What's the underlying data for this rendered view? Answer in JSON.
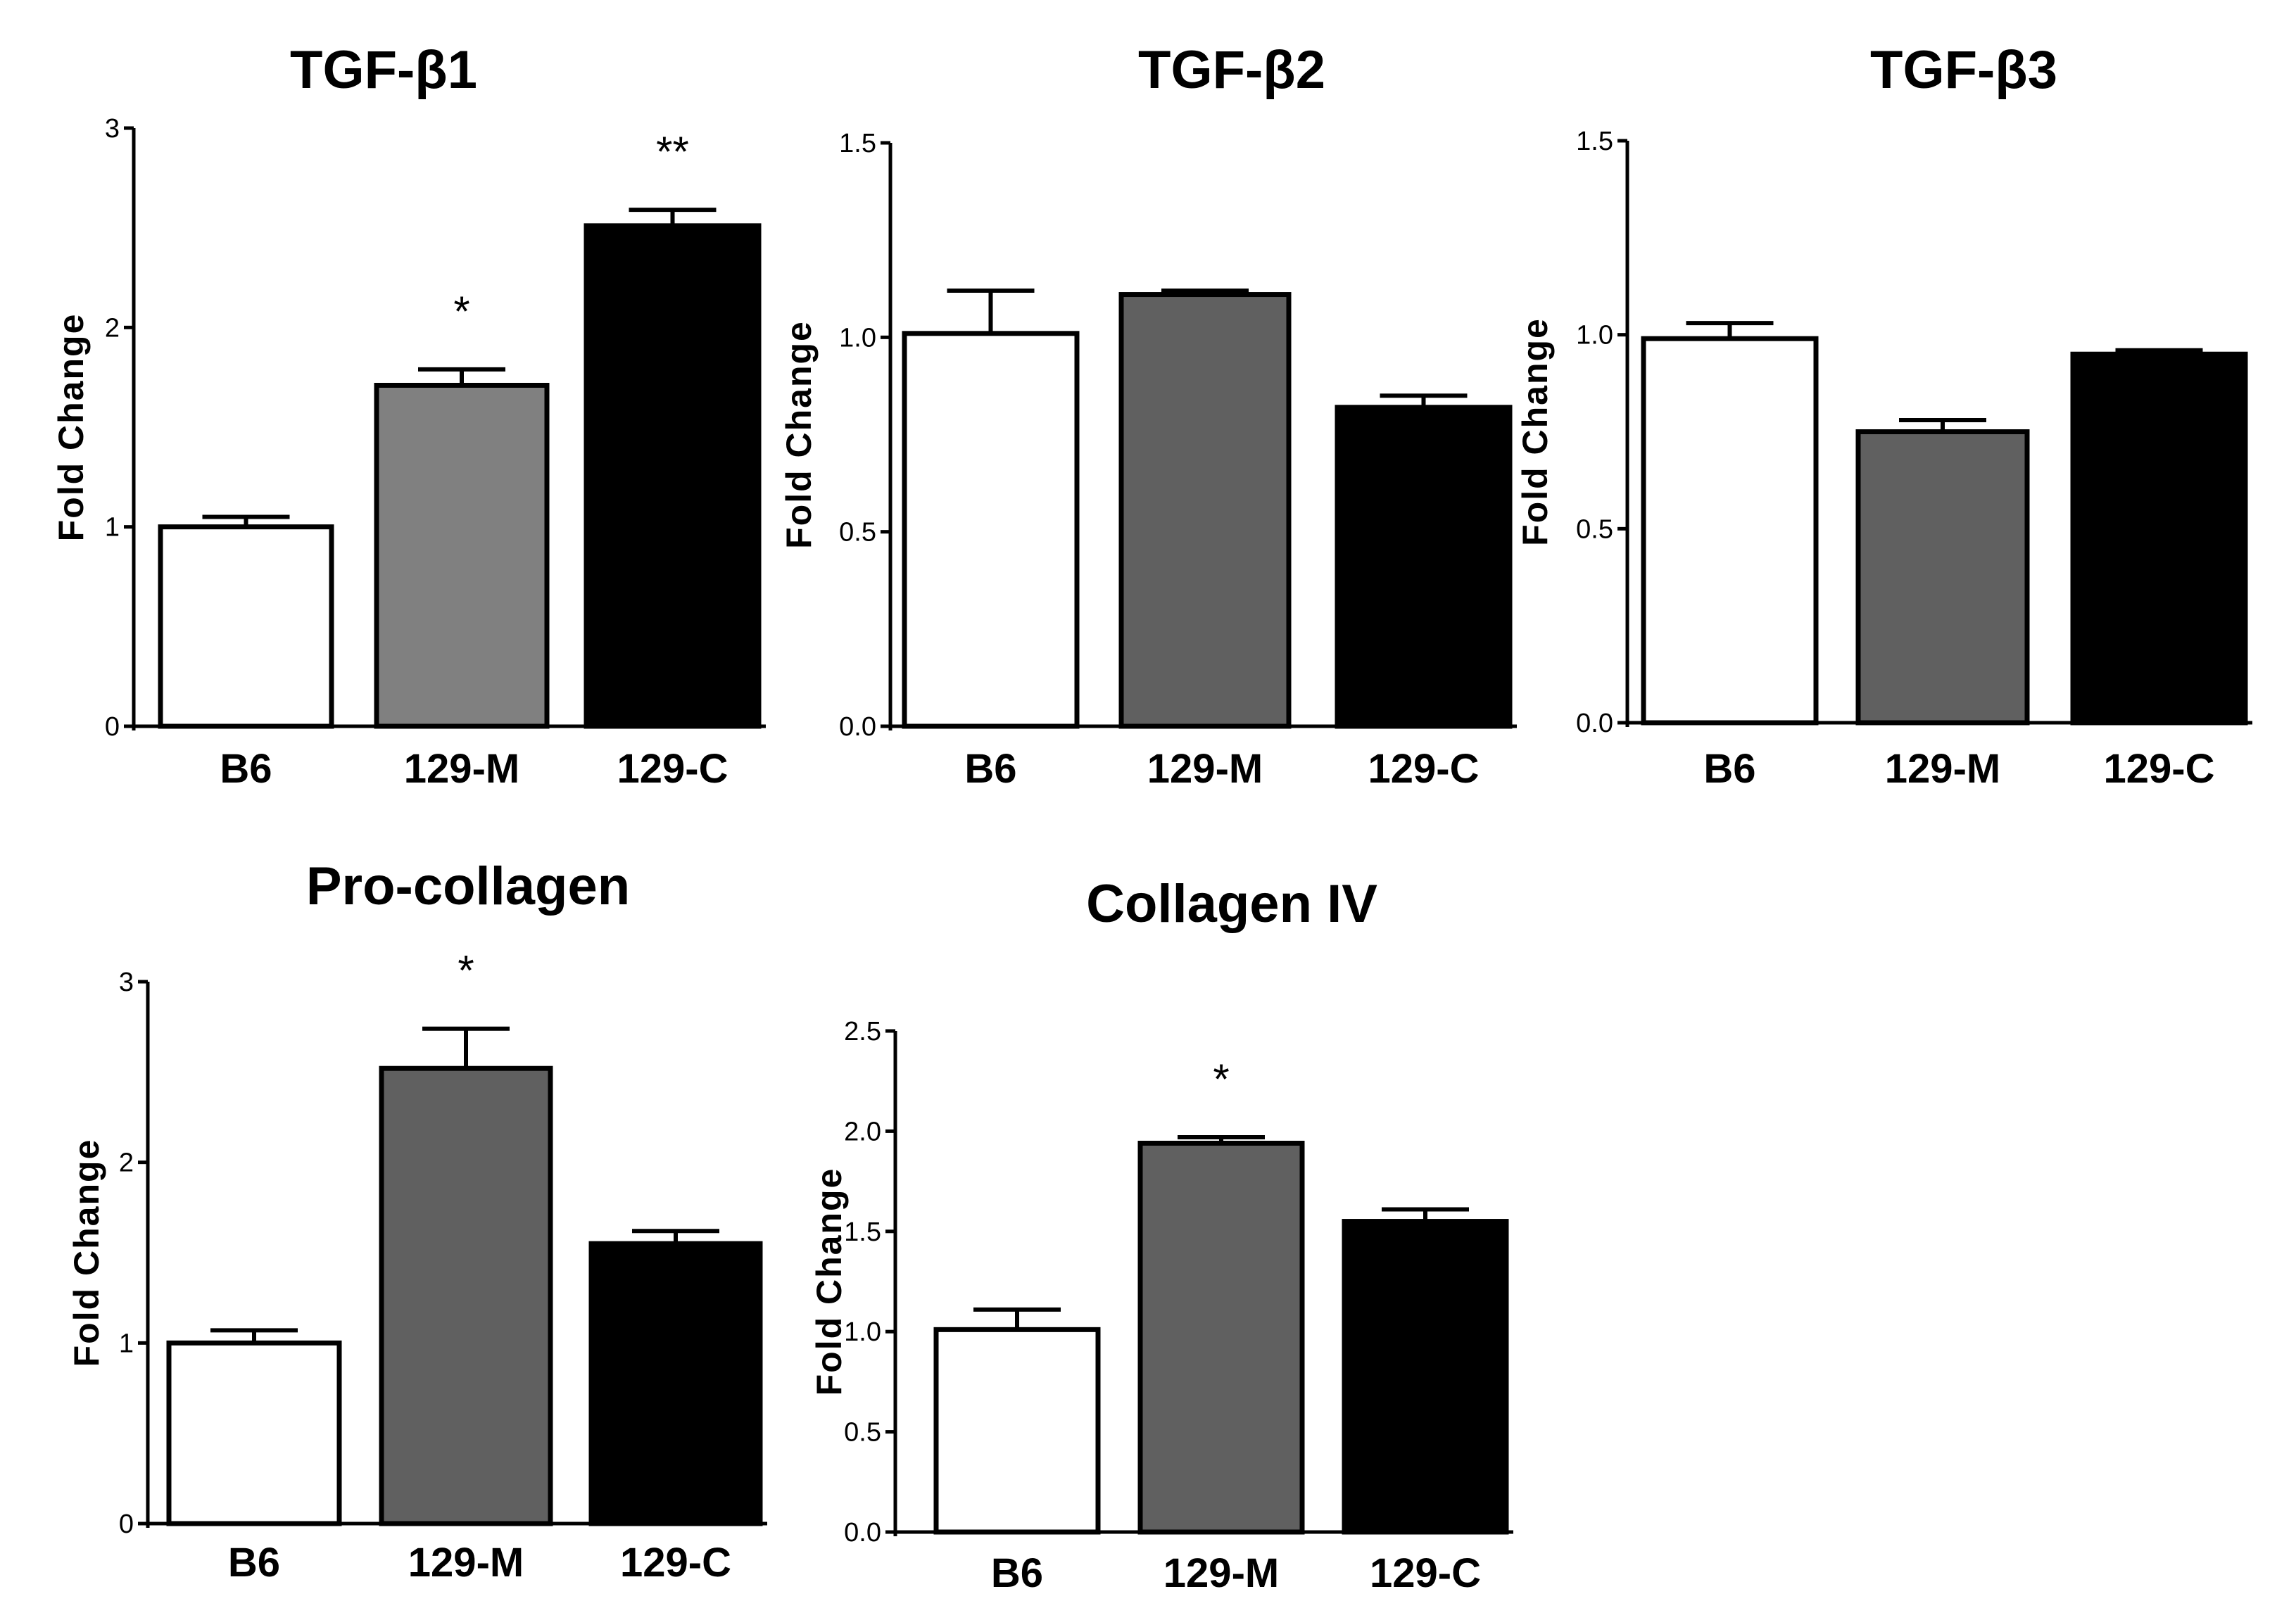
{
  "chart_data": [
    {
      "type": "bar",
      "title": "TGF-β1",
      "ylabel": "Fold Change",
      "xlabel": "",
      "categories": [
        "B6",
        "129-M",
        "129-C"
      ],
      "values": [
        1.0,
        1.71,
        2.51
      ],
      "errors": [
        0.05,
        0.08,
        0.08
      ],
      "significance": [
        "",
        "*",
        "**"
      ],
      "bar_colors": [
        "#ffffff",
        "#808080",
        "#000000"
      ],
      "ylim": [
        0,
        3
      ],
      "yticks": [
        0,
        1,
        2,
        3
      ],
      "ytick_labels": [
        "0",
        "1",
        "2",
        "3"
      ]
    },
    {
      "type": "bar",
      "title": "TGF-β2",
      "ylabel": "Fold Change",
      "xlabel": "",
      "categories": [
        "B6",
        "129-M",
        "129-C"
      ],
      "values": [
        1.01,
        1.11,
        0.82
      ],
      "errors": [
        0.11,
        0.01,
        0.03
      ],
      "significance": [
        "",
        "",
        ""
      ],
      "bar_colors": [
        "#ffffff",
        "#606060",
        "#000000"
      ],
      "ylim": [
        0,
        1.5
      ],
      "yticks": [
        0,
        0.5,
        1.0,
        1.5
      ],
      "ytick_labels": [
        "0.0",
        "0.5",
        "1.0",
        "1.5"
      ]
    },
    {
      "type": "bar",
      "title": "TGF-β3",
      "ylabel": "Fold Change",
      "xlabel": "",
      "categories": [
        "B6",
        "129-M",
        "129-C"
      ],
      "values": [
        0.99,
        0.75,
        0.95
      ],
      "errors": [
        0.04,
        0.03,
        0.01
      ],
      "significance": [
        "",
        "",
        ""
      ],
      "bar_colors": [
        "#ffffff",
        "#606060",
        "#000000"
      ],
      "ylim": [
        0,
        1.5
      ],
      "yticks": [
        0,
        0.5,
        1.0,
        1.5
      ],
      "ytick_labels": [
        "0.0",
        "0.5",
        "1.0",
        "1.5"
      ]
    },
    {
      "type": "bar",
      "title": "Pro-collagen",
      "ylabel": "Fold Change",
      "xlabel": "",
      "categories": [
        "B6",
        "129-M",
        "129-C"
      ],
      "values": [
        1.0,
        2.52,
        1.55
      ],
      "errors": [
        0.07,
        0.22,
        0.07
      ],
      "significance": [
        "",
        "*",
        ""
      ],
      "bar_colors": [
        "#ffffff",
        "#606060",
        "#000000"
      ],
      "ylim": [
        0,
        3
      ],
      "yticks": [
        0,
        1,
        2,
        3
      ],
      "ytick_labels": [
        "0",
        "1",
        "2",
        "3"
      ]
    },
    {
      "type": "bar",
      "title": "Collagen IV",
      "ylabel": "Fold Change",
      "xlabel": "",
      "categories": [
        "B6",
        "129-M",
        "129-C"
      ],
      "values": [
        1.01,
        1.94,
        1.55
      ],
      "errors": [
        0.1,
        0.03,
        0.06
      ],
      "significance": [
        "",
        "*",
        ""
      ],
      "bar_colors": [
        "#ffffff",
        "#606060",
        "#000000"
      ],
      "ylim": [
        0,
        2.5
      ],
      "yticks": [
        0,
        0.5,
        1.0,
        1.5,
        2.0,
        2.5
      ],
      "ytick_labels": [
        "0.0",
        "0.5",
        "1.0",
        "1.5",
        "2.0",
        "2.5"
      ]
    }
  ]
}
